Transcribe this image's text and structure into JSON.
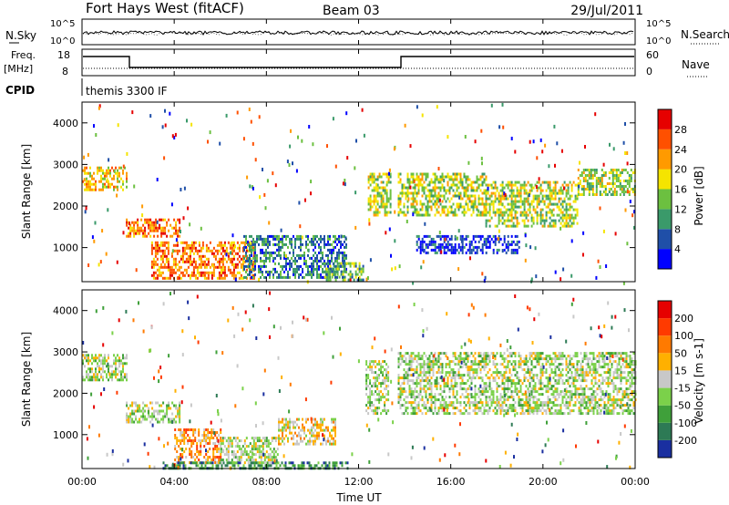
{
  "header": {
    "station": "Fort Hays West (fitACF)",
    "beam": "Beam 03",
    "date": "29/Jul/2011"
  },
  "noise_panel": {
    "left_label": "N.Sky",
    "right_label": "N.Search",
    "left_ticks": [
      "10^5",
      "10^0"
    ],
    "right_ticks": [
      "10^5",
      "10^0"
    ]
  },
  "freq_panel": {
    "left_label_1": "Freq.",
    "left_label_2": "[MHz]",
    "right_label": "Nave",
    "left_ticks": [
      "18",
      "8"
    ],
    "right_ticks": [
      "60",
      "0"
    ]
  },
  "cpid": {
    "label": "CPID",
    "program": "themis 3300 IF"
  },
  "chart_data": [
    {
      "type": "heatmap",
      "name": "Power",
      "ylabel": "Slant Range [km]",
      "xlabel": "Time UT",
      "xlim": [
        0,
        24
      ],
      "ylim": [
        180,
        4500
      ],
      "ytick_labels": [
        "1000",
        "2000",
        "3000",
        "4000"
      ],
      "yticks": [
        1000,
        2000,
        3000,
        4000
      ],
      "colorbar": {
        "label": "Power [dB]",
        "tick_labels": [
          "4",
          "8",
          "12",
          "16",
          "20",
          "24",
          "28"
        ],
        "colors": [
          "#0000ff",
          "#1f4fa8",
          "#3a9a6a",
          "#6cc040",
          "#f5e400",
          "#ff9a00",
          "#ff5000",
          "#e60000"
        ]
      },
      "bands": [
        {
          "t0": 0.0,
          "t1": 1.9,
          "r0": 2400,
          "r1": 2950,
          "level": 5
        },
        {
          "t0": 1.9,
          "t1": 4.2,
          "r0": 1250,
          "r1": 1700,
          "level": 6
        },
        {
          "t0": 3.0,
          "t1": 7.5,
          "r0": 250,
          "r1": 1150,
          "level": 6
        },
        {
          "t0": 7.0,
          "t1": 11.5,
          "r0": 250,
          "r1": 1300,
          "level": 2
        },
        {
          "t0": 10.5,
          "t1": 12.2,
          "r0": 250,
          "r1": 650,
          "level": 3
        },
        {
          "t0": 12.4,
          "t1": 13.4,
          "r0": 1800,
          "r1": 2800,
          "level": 4
        },
        {
          "t0": 13.7,
          "t1": 17.5,
          "r0": 1800,
          "r1": 2800,
          "level": 4
        },
        {
          "t0": 17.5,
          "t1": 21.5,
          "r0": 1500,
          "r1": 2600,
          "level": 4
        },
        {
          "t0": 21.5,
          "t1": 24.0,
          "r0": 2300,
          "r1": 2900,
          "level": 4
        },
        {
          "t0": 14.5,
          "t1": 19.0,
          "r0": 850,
          "r1": 1300,
          "level": 1
        }
      ]
    },
    {
      "type": "heatmap",
      "name": "Velocity",
      "ylabel": "Slant Range [km]",
      "xlabel": "Time UT",
      "xlim": [
        0,
        24
      ],
      "ylim": [
        180,
        4500
      ],
      "ytick_labels": [
        "1000",
        "2000",
        "3000",
        "4000"
      ],
      "yticks": [
        1000,
        2000,
        3000,
        4000
      ],
      "colorbar": {
        "label": "Velocity [m s-1]",
        "tick_labels": [
          "200",
          "100",
          "50",
          "15",
          "-15",
          "-50",
          "-100",
          "-200"
        ],
        "colors": [
          "#1a2fa0",
          "#2d7a55",
          "#3fa03a",
          "#7bd14a",
          "#c8c8c8",
          "#ffb000",
          "#ff7a00",
          "#ff3a00",
          "#e60000"
        ]
      },
      "bands": [
        {
          "t0": 0.0,
          "t1": 1.9,
          "r0": 2300,
          "r1": 2950,
          "level": 4
        },
        {
          "t0": 1.9,
          "t1": 4.2,
          "r0": 1300,
          "r1": 1800,
          "level": 4
        },
        {
          "t0": 4.0,
          "t1": 6.0,
          "r0": 350,
          "r1": 1150,
          "level": 6
        },
        {
          "t0": 6.0,
          "t1": 8.5,
          "r0": 300,
          "r1": 950,
          "level": 4
        },
        {
          "t0": 8.5,
          "t1": 11.0,
          "r0": 800,
          "r1": 1400,
          "level": 5
        },
        {
          "t0": 3.5,
          "t1": 11.5,
          "r0": 180,
          "r1": 350,
          "level": 2
        },
        {
          "t0": 12.3,
          "t1": 13.3,
          "r0": 1500,
          "r1": 2800,
          "level": 4
        },
        {
          "t0": 13.7,
          "t1": 24.0,
          "r0": 1500,
          "r1": 3000,
          "level": 4
        }
      ]
    }
  ],
  "time_axis": {
    "label": "Time UT",
    "tick_labels": [
      "00:00",
      "04:00",
      "08:00",
      "12:00",
      "16:00",
      "20:00",
      "00:00"
    ],
    "ticks": [
      0,
      4,
      8,
      12,
      16,
      20,
      24
    ]
  }
}
